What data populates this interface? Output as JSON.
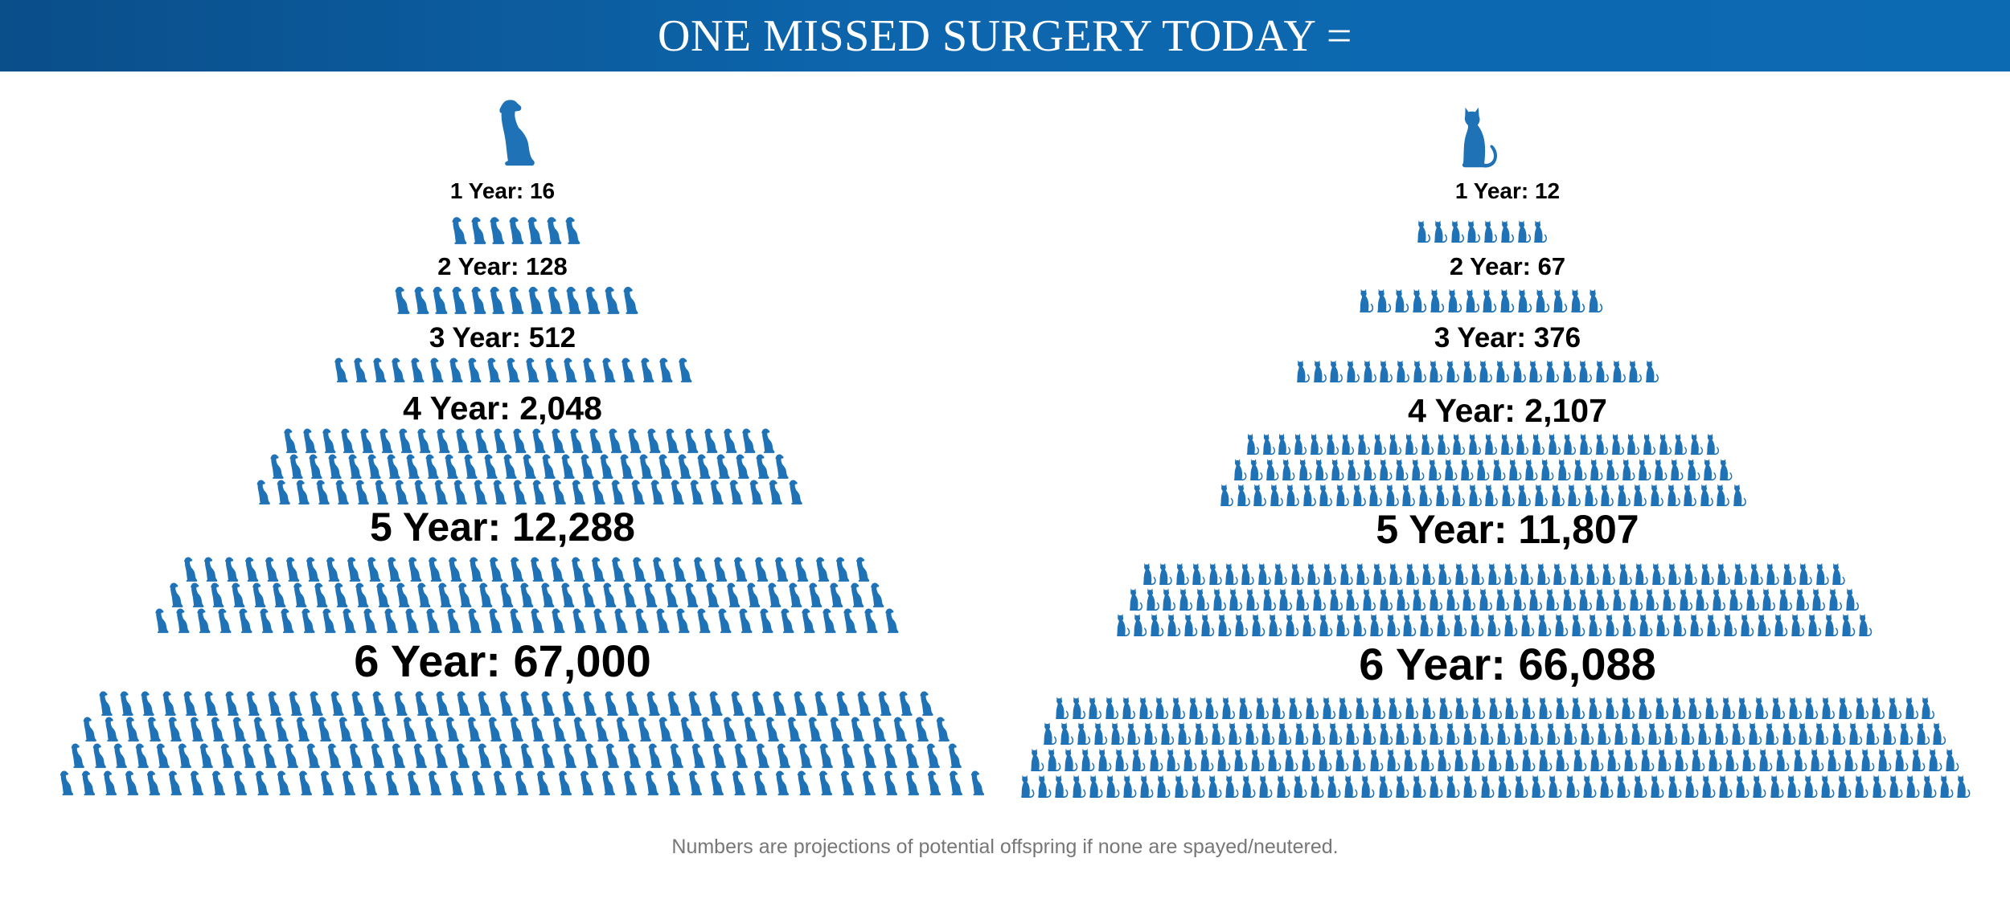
{
  "header": {
    "title": "ONE MISSED SURGERY TODAY ="
  },
  "accent_color": "#1f72b6",
  "dog": {
    "hero_icon": "dog-icon",
    "tiers": [
      {
        "label": "1 Year: 16"
      },
      {
        "label": "2 Year: 128"
      },
      {
        "label": "3 Year: 512"
      },
      {
        "label": "4 Year: 2,048"
      },
      {
        "label": "5 Year: 12,288"
      },
      {
        "label": "6 Year: 67,000"
      }
    ]
  },
  "cat": {
    "hero_icon": "cat-icon",
    "tiers": [
      {
        "label": "1 Year: 12"
      },
      {
        "label": "2 Year: 67"
      },
      {
        "label": "3 Year: 376"
      },
      {
        "label": "4 Year: 2,107"
      },
      {
        "label": "5 Year: 11,807"
      },
      {
        "label": "6 Year: 66,088"
      }
    ]
  },
  "footnote": "Numbers are projections of potential offspring if none are spayed/neutered."
}
